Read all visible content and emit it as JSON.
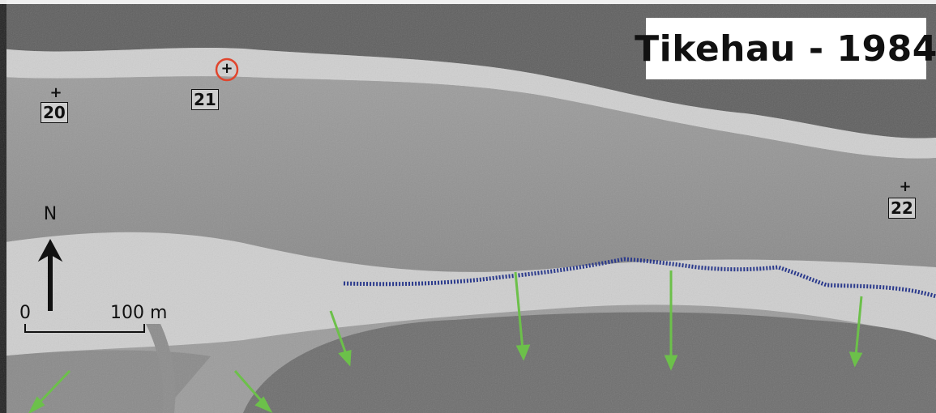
{
  "map": {
    "title": "Tikehau - 1984",
    "markers": [
      {
        "id": "marker-20",
        "label": "20",
        "highlighted": false
      },
      {
        "id": "marker-21",
        "label": "21",
        "highlighted": true
      },
      {
        "id": "marker-22",
        "label": "22",
        "highlighted": false
      }
    ],
    "north_label": "N",
    "scale": {
      "start": "0",
      "end": "100 m"
    },
    "colors": {
      "arrow": "#6cc04a",
      "shoreline_dotted": "#2b3a8c",
      "highlight_circle": "#e0452d"
    }
  }
}
